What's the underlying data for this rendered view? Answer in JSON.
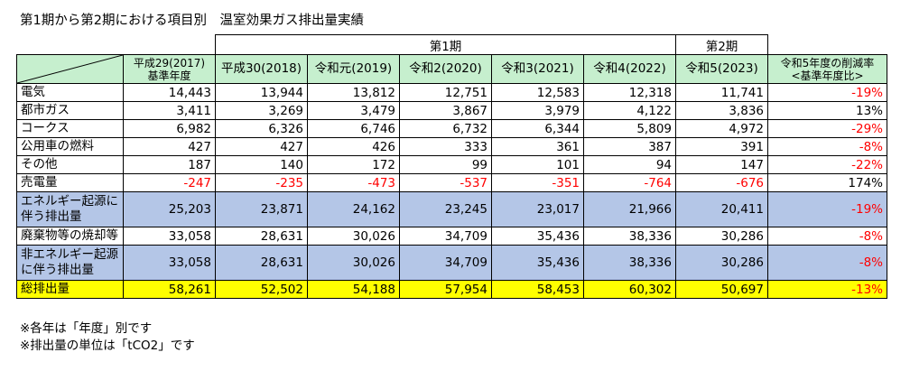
{
  "title": "第1期から第2期における項目別　温室効果ガス排出量実績",
  "periods": {
    "first": "第1期",
    "second": "第2期"
  },
  "headers": [
    "平成29(2017)\n基準年度",
    "平成30(2018)",
    "令和元(2019)",
    "令和2(2020)",
    "令和3(2021)",
    "令和4(2022)",
    "令和5(2023)",
    "令和5年度の削減率\n<基準年度比>"
  ],
  "rows": [
    {
      "label": "電気",
      "values": [
        "14,443",
        "13,944",
        "13,812",
        "12,751",
        "12,583",
        "12,318",
        "11,741"
      ],
      "rate": "-19%"
    },
    {
      "label": "都市ガス",
      "values": [
        "3,411",
        "3,269",
        "3,479",
        "3,867",
        "3,979",
        "4,122",
        "3,836"
      ],
      "rate": "13%"
    },
    {
      "label": "コークス",
      "values": [
        "6,982",
        "6,326",
        "6,746",
        "6,732",
        "6,344",
        "5,809",
        "4,972"
      ],
      "rate": "-29%"
    },
    {
      "label": "公用車の燃料",
      "values": [
        "427",
        "427",
        "426",
        "333",
        "361",
        "387",
        "391"
      ],
      "rate": "-8%"
    },
    {
      "label": "その他",
      "values": [
        "187",
        "140",
        "172",
        "99",
        "101",
        "94",
        "147"
      ],
      "rate": "-22%"
    },
    {
      "label": "売電量",
      "values": [
        "-247",
        "-235",
        "-473",
        "-537",
        "-351",
        "-764",
        "-676"
      ],
      "rate": "174%"
    },
    {
      "label": "エネルギー起源に\n伴う排出量",
      "values": [
        "25,203",
        "23,871",
        "24,162",
        "23,245",
        "23,017",
        "21,966",
        "20,411"
      ],
      "rate": "-19%"
    },
    {
      "label": "廃棄物等の焼却等",
      "values": [
        "33,058",
        "28,631",
        "30,026",
        "34,709",
        "35,436",
        "38,336",
        "30,286"
      ],
      "rate": "-8%"
    },
    {
      "label": "非エネルギー起源\nに伴う排出量",
      "values": [
        "33,058",
        "28,631",
        "30,026",
        "34,709",
        "35,436",
        "38,336",
        "30,286"
      ],
      "rate": "-8%"
    },
    {
      "label": "総排出量",
      "values": [
        "58,261",
        "52,502",
        "54,188",
        "57,954",
        "58,453",
        "60,302",
        "50,697"
      ],
      "rate": "-13%"
    }
  ],
  "notes": [
    "※各年は「年度」別です",
    "※排出量の単位は「tCO2」です"
  ],
  "colors": {
    "header_green": "#c6efce",
    "subtotal_blue": "#b4c6e7",
    "total_yellow": "#ffff00",
    "negative_red": "#ff0000"
  }
}
